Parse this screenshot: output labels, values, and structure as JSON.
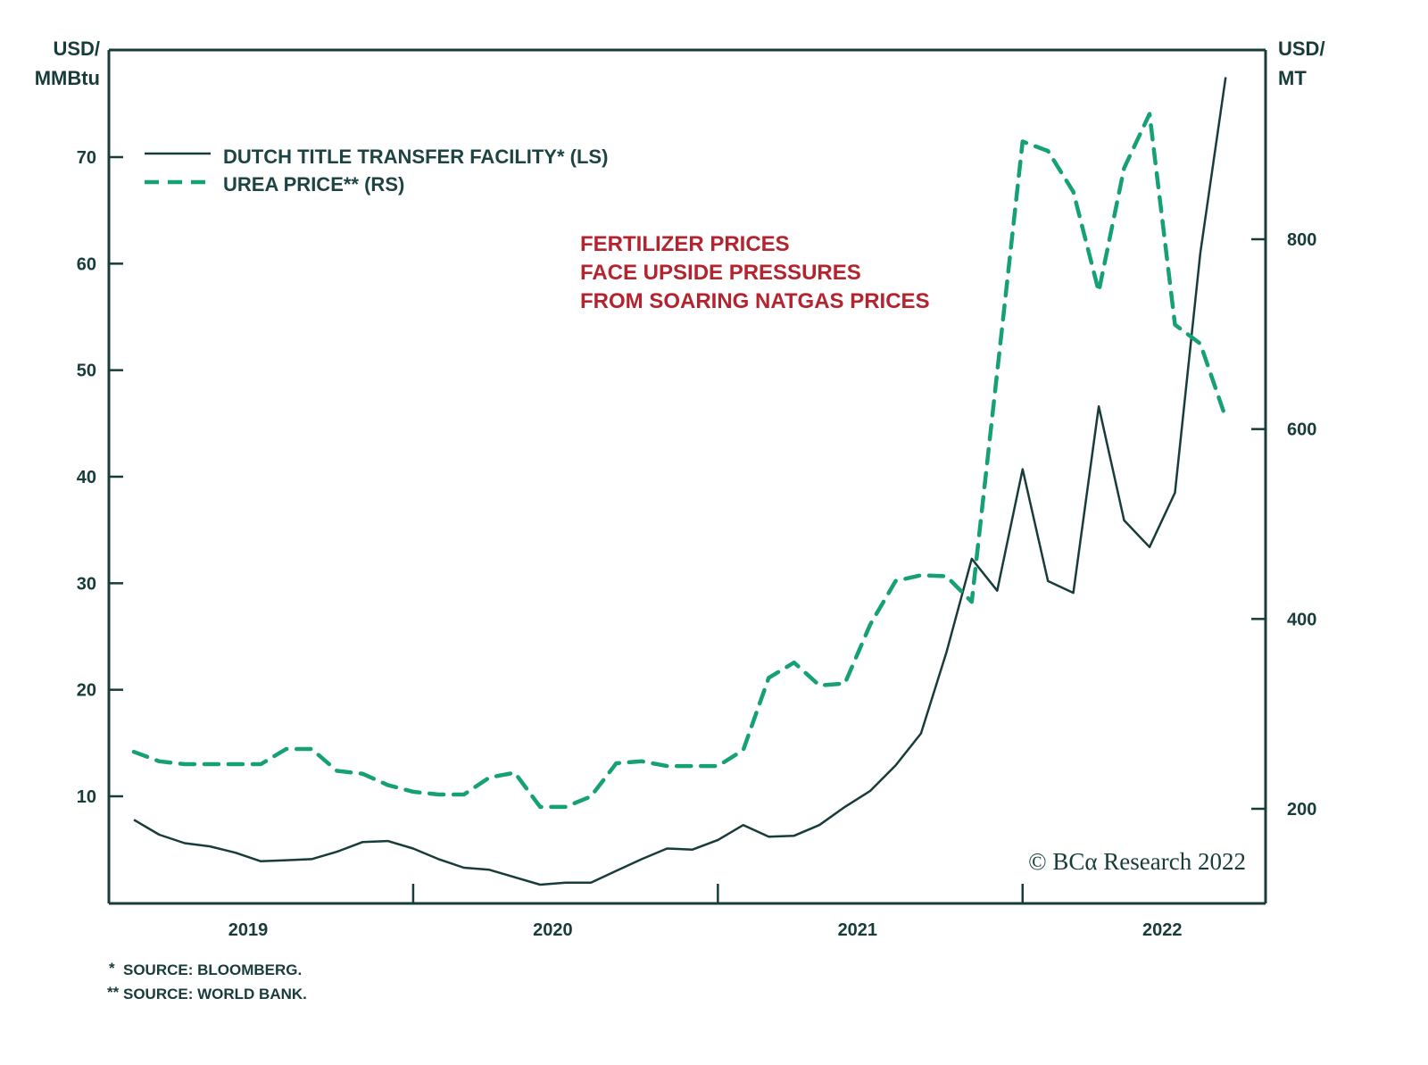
{
  "chart_data": {
    "type": "line",
    "title": "",
    "annotation": [
      "FERTILIZER PRICES",
      "FACE UPSIDE PRESSURES",
      "FROM SOARING NATGAS PRICES"
    ],
    "left_axis": {
      "unit_line1": "USD/",
      "unit_line2": "MMBtu",
      "range": [
        0,
        80
      ],
      "ticks": [
        10,
        20,
        30,
        40,
        50,
        60,
        70
      ]
    },
    "right_axis": {
      "unit_line1": "USD/",
      "unit_line2": "MT",
      "range": [
        100,
        1000
      ],
      "ticks": [
        200,
        400,
        600,
        800
      ]
    },
    "x_axis": {
      "start": "2018-08",
      "year_labels": [
        {
          "label": "2019",
          "month_index": 4.5
        },
        {
          "label": "2020",
          "month_index": 16.5
        },
        {
          "label": "2021",
          "month_index": 28.5
        },
        {
          "label": "2022",
          "month_index": 40.5
        }
      ],
      "tick_month_indices": [
        11,
        23,
        35
      ]
    },
    "grid": false,
    "legend_position": "top-left",
    "series": [
      {
        "name": "DUTCH TITLE TRANSFER FACILITY* (LS)",
        "axis": "left",
        "style": "solid",
        "color": "#173c3a",
        "start": "2018-08",
        "values": [
          7.8,
          6.4,
          5.6,
          5.3,
          4.7,
          3.9,
          4.0,
          4.1,
          4.8,
          5.7,
          5.8,
          5.1,
          4.1,
          3.3,
          3.1,
          2.4,
          1.7,
          1.9,
          1.9,
          3.0,
          4.1,
          5.1,
          5.0,
          5.9,
          7.3,
          6.2,
          6.3,
          7.3,
          9.0,
          10.5,
          12.9,
          15.9,
          23.5,
          32.3,
          29.3,
          40.7,
          30.2,
          29.1,
          46.6,
          35.9,
          33.4,
          38.5,
          61.0,
          77.5
        ]
      },
      {
        "name": "UREA PRICE** (RS)",
        "axis": "right",
        "style": "dashed",
        "color": "#16a075",
        "start": "2018-08",
        "values": [
          260,
          250,
          247,
          247,
          247,
          247,
          263,
          263,
          240,
          237,
          225,
          218,
          215,
          215,
          233,
          238,
          202,
          202,
          213,
          248,
          250,
          245,
          245,
          245,
          262,
          338,
          354,
          330,
          332,
          394,
          440,
          446,
          445,
          418,
          660,
          903,
          893,
          850,
          745,
          875,
          932,
          710,
          690,
          612
        ]
      }
    ]
  },
  "legend": {
    "items": [
      {
        "label": "DUTCH TITLE TRANSFER FACILITY* (LS)",
        "style": "solid"
      },
      {
        "label": "UREA PRICE** (RS)",
        "style": "dashed"
      }
    ]
  },
  "footnotes": [
    "SOURCE: BLOOMBERG.",
    "SOURCE: WORLD BANK."
  ],
  "footnote_marks": [
    "*",
    "**"
  ],
  "copyright": {
    "symbol": "©",
    "brand": "BCα",
    "rest": "Research 2022"
  }
}
